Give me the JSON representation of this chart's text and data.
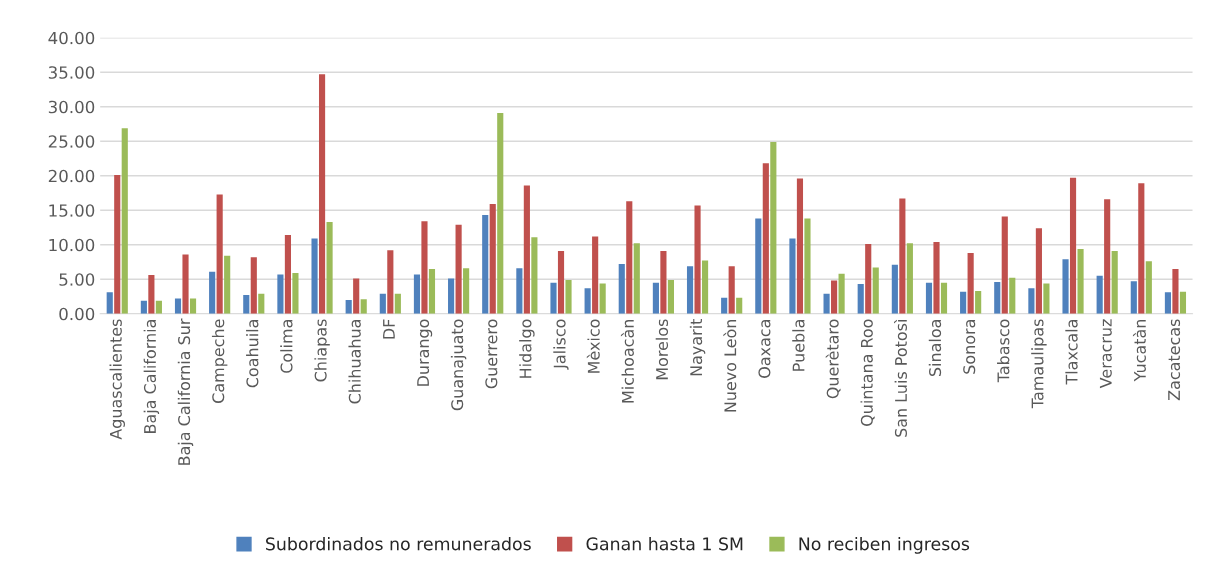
{
  "chart_data": {
    "type": "bar",
    "categories": [
      "Aguascalientes",
      "Baja California",
      "Baja California Sur",
      "Campeche",
      "Coahuila",
      "Colima",
      "Chiapas",
      "Chihuahua",
      "DF",
      "Durango",
      "Guanajuato",
      "Guerrero",
      "Hidalgo",
      "Jalisco",
      "Mèxico",
      "Michoacàn",
      "Morelos",
      "Nayarit",
      "Nuevo Leòn",
      "Oaxaca",
      "Puebla",
      "Querètaro",
      "Quintana Roo",
      "San Luis Potosì",
      "Sinaloa",
      "Sonora",
      "Tabasco",
      "Tamaulipas",
      "Tlaxcala",
      "Veracruz",
      "Yucatàn",
      "Zacatecas"
    ],
    "series": [
      {
        "name": "Subordinados no remunerados",
        "color": "#4f81bd",
        "values": [
          3.1,
          1.9,
          2.2,
          6.1,
          2.7,
          5.7,
          10.9,
          2.0,
          2.9,
          5.7,
          5.1,
          14.3,
          6.6,
          4.5,
          3.7,
          7.2,
          4.5,
          6.9,
          2.3,
          13.8,
          10.9,
          2.9,
          4.3,
          7.1,
          4.5,
          3.2,
          4.6,
          3.7,
          7.9,
          5.5,
          4.7,
          3.1
        ]
      },
      {
        "name": "Ganan hasta 1 SM",
        "color": "#c0504d",
        "values": [
          20.1,
          5.6,
          8.6,
          17.3,
          8.2,
          11.4,
          34.7,
          5.1,
          9.2,
          13.4,
          12.9,
          15.9,
          18.6,
          9.1,
          11.2,
          16.3,
          9.1,
          15.7,
          6.9,
          21.8,
          19.6,
          4.8,
          10.1,
          16.7,
          10.4,
          8.8,
          14.1,
          12.4,
          19.7,
          16.6,
          18.9,
          6.5
        ]
      },
      {
        "name": "No reciben ingresos",
        "color": "#9bbb59",
        "values": [
          26.9,
          1.9,
          2.2,
          8.4,
          2.9,
          5.9,
          13.3,
          2.1,
          2.9,
          6.5,
          6.6,
          29.1,
          11.1,
          4.9,
          4.4,
          10.2,
          4.9,
          7.7,
          2.3,
          24.9,
          13.8,
          5.8,
          6.7,
          10.2,
          4.5,
          3.3,
          5.2,
          4.4,
          9.4,
          9.1,
          7.6,
          3.2
        ]
      }
    ],
    "ylim": [
      0,
      40
    ],
    "yticks": [
      {
        "value": 0,
        "label": "0.00"
      },
      {
        "value": 5,
        "label": "5.00"
      },
      {
        "value": 10,
        "label": "10.00"
      },
      {
        "value": 15,
        "label": "15.00"
      },
      {
        "value": 20,
        "label": "20.00"
      },
      {
        "value": 25,
        "label": "25.00"
      },
      {
        "value": 30,
        "label": "30.00"
      },
      {
        "value": 35,
        "label": "35.00"
      },
      {
        "value": 40,
        "label": "40.00"
      }
    ],
    "grid": "y",
    "legend": "bottom"
  }
}
